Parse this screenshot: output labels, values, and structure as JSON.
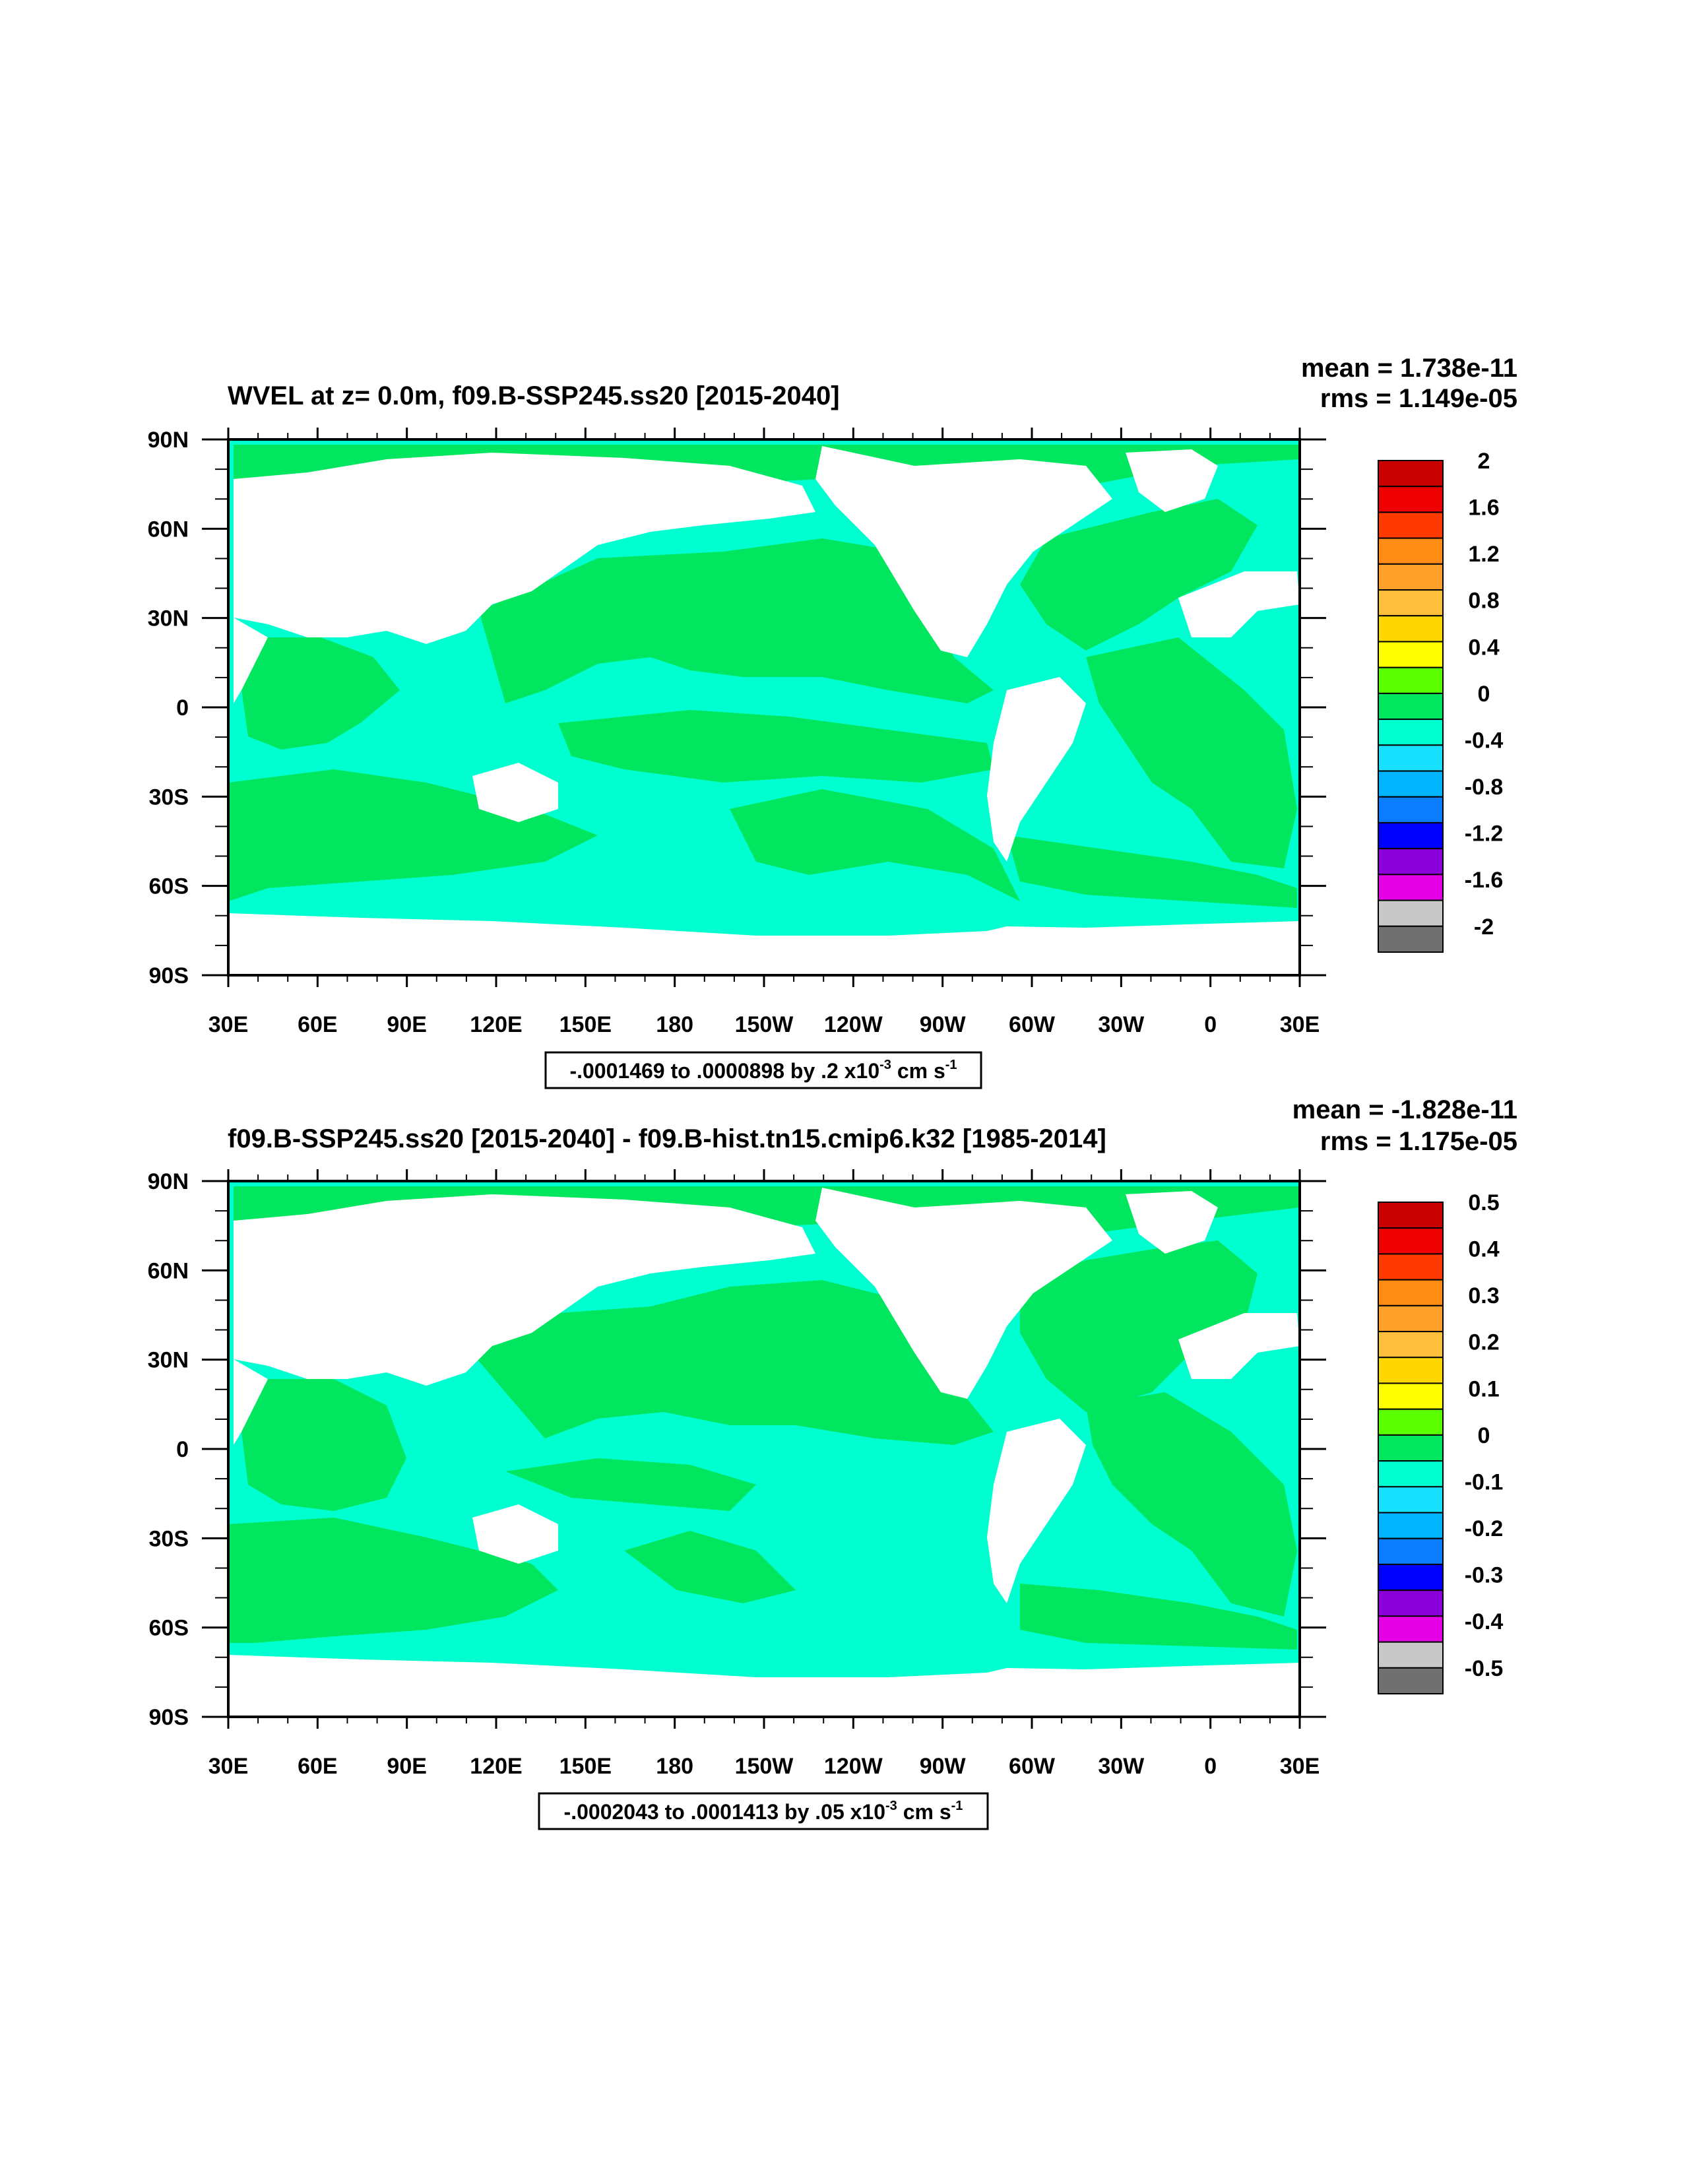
{
  "colors": {
    "ocean_neg": "#00ffd0",
    "ocean_pos": "#00e65f",
    "land": "#ffffff",
    "frame": "#000000"
  },
  "colorbar_colors": [
    "#c80000",
    "#ee0000",
    "#ff3a00",
    "#ff8c14",
    "#ffa02a",
    "#ffbe3c",
    "#ffd700",
    "#ffff00",
    "#5aff00",
    "#00e65f",
    "#00ffd0",
    "#18e0ff",
    "#00b4ff",
    "#0a7dff",
    "#0000ff",
    "#8c00dc",
    "#e600e6",
    "#c8c8c8",
    "#707070"
  ],
  "x_ticks": [
    "30E",
    "60E",
    "90E",
    "120E",
    "150E",
    "180",
    "150W",
    "120W",
    "90W",
    "60W",
    "30W",
    "0",
    "30E"
  ],
  "y_ticks": [
    "90N",
    "60N",
    "30N",
    "0",
    "30S",
    "60S",
    "90S"
  ],
  "panels": [
    {
      "title": "WVEL at z=   0.0m, f09.B-SSP245.ss20 [2015-2040]",
      "mean": "mean = 1.738e-11",
      "rms": "rms = 1.149e-05",
      "range_text": "-.0001469 to .0000898 by .2 x10",
      "range_exp": "-3",
      "range_unit": " cm s",
      "range_unit_exp": "-1",
      "colorbar_labels": [
        "2",
        "1.6",
        "1.2",
        "0.8",
        "0.4",
        "0",
        "-0.4",
        "-0.8",
        "-1.2",
        "-1.6",
        "-2"
      ]
    },
    {
      "title": "f09.B-SSP245.ss20 [2015-2040] - f09.B-hist.tn15.cmip6.k32 [1985-2014]",
      "mean": "mean = -1.828e-11",
      "rms": "rms = 1.175e-05",
      "range_text": "-.0002043 to .0001413 by .05 x10",
      "range_exp": "-3",
      "range_unit": " cm s",
      "range_unit_exp": "-1",
      "colorbar_labels": [
        "0.5",
        "0.4",
        "0.3",
        "0.2",
        "0.1",
        "0",
        "-0.1",
        "-0.2",
        "-0.3",
        "-0.4",
        "-0.5"
      ]
    }
  ]
}
